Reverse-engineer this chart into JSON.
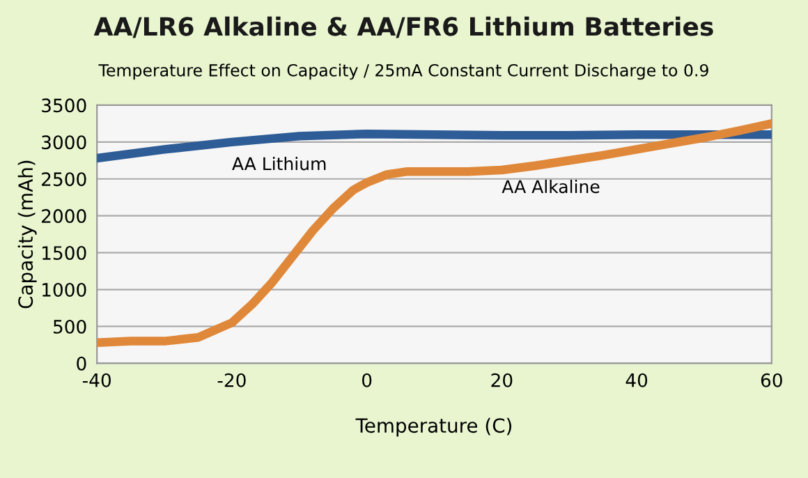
{
  "chart_data": {
    "type": "line",
    "title": "AA/LR6 Alkaline & AA/FR6 Lithium Batteries",
    "subtitle": "Temperature Effect on Capacity / 25mA Constant Current Discharge to 0.9",
    "xlabel": "Temperature (C)",
    "ylabel": "Capacity (mAh)",
    "series": [
      {
        "name": "AA Lithium",
        "color": "#2e5c96",
        "x": [
          -40,
          -30,
          -20,
          -10,
          0,
          10,
          20,
          30,
          40,
          50,
          60
        ],
        "values": [
          2780,
          2900,
          3000,
          3080,
          3110,
          3100,
          3090,
          3090,
          3100,
          3100,
          3100
        ]
      },
      {
        "name": "AA Alkaline",
        "color": "#e0883a",
        "x": [
          -40,
          -35,
          -30,
          -25,
          -20,
          -17,
          -14,
          -11,
          -8,
          -5,
          -2,
          0,
          3,
          6,
          10,
          15,
          20,
          25,
          30,
          35,
          40,
          45,
          50,
          55,
          60
        ],
        "values": [
          280,
          300,
          300,
          350,
          550,
          800,
          1100,
          1450,
          1800,
          2100,
          2350,
          2450,
          2560,
          2600,
          2600,
          2600,
          2620,
          2680,
          2750,
          2820,
          2900,
          2980,
          3060,
          3150,
          3250
        ]
      }
    ],
    "xlim": [
      -40,
      60
    ],
    "xticks": [
      -40,
      -20,
      0,
      20,
      40,
      60
    ],
    "ylim": [
      0,
      3500
    ],
    "yticks": [
      0,
      500,
      1000,
      1500,
      2000,
      2500,
      3000,
      3500
    ],
    "grid": "y",
    "legend": false,
    "marker": "none",
    "line_style": "solid"
  }
}
